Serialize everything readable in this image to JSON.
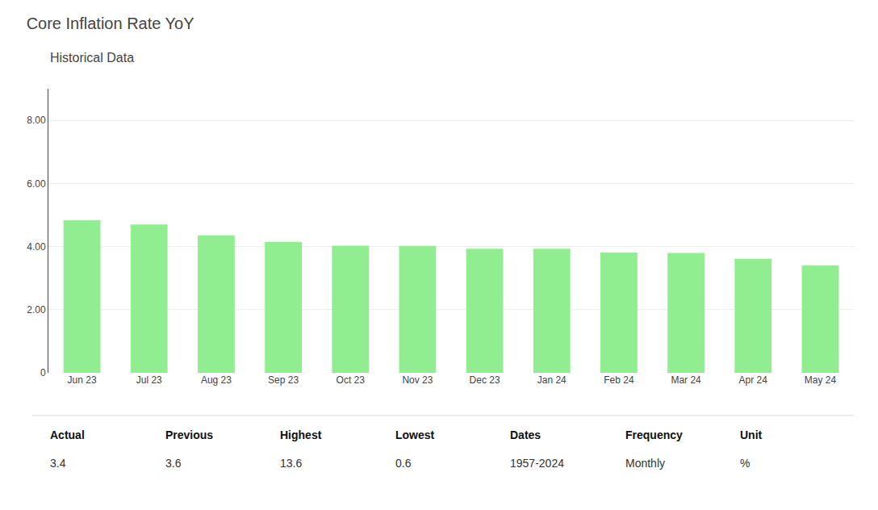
{
  "chart_data": {
    "type": "bar",
    "title": "Core Inflation Rate YoY",
    "subtitle": "Historical Data",
    "categories": [
      "Jun 23",
      "Jul 23",
      "Aug 23",
      "Sep 23",
      "Oct 23",
      "Nov 23",
      "Dec 23",
      "Jan 24",
      "Feb 24",
      "Mar 24",
      "Apr 24",
      "May 24"
    ],
    "values": [
      4.83,
      4.7,
      4.35,
      4.15,
      4.03,
      4.02,
      3.93,
      3.93,
      3.81,
      3.8,
      3.61,
      3.4
    ],
    "color": "#90EE90",
    "ylim": [
      0,
      9.0
    ],
    "yticks": [
      0,
      {
        "value": 2.0,
        "label": "2.00"
      },
      {
        "value": 4.0,
        "label": "4.00"
      },
      {
        "value": 6.0,
        "label": "6.00"
      },
      {
        "value": 8.0,
        "label": "8.00"
      }
    ],
    "grid": true,
    "annotations": [
      {
        "header": "Actual",
        "text": "3.4"
      },
      {
        "header": "Previous",
        "text": "3.6"
      },
      {
        "header": "Highest",
        "text": "13.6"
      },
      {
        "header": "Lowest",
        "text": "0.6"
      },
      {
        "header": "Dates",
        "text": "1957-2024"
      },
      {
        "header": "Frequency",
        "text": "Monthly"
      },
      {
        "header": "Unit",
        "text": "%"
      }
    ]
  }
}
